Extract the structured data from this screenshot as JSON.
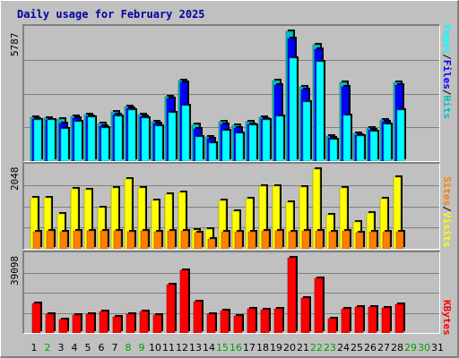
{
  "chart_data": {
    "type": "bar",
    "title": "Daily usage for February 2025",
    "categories": [
      "1",
      "2",
      "3",
      "4",
      "5",
      "6",
      "7",
      "8",
      "9",
      "10",
      "11",
      "12",
      "13",
      "14",
      "15",
      "16",
      "17",
      "18",
      "19",
      "20",
      "21",
      "22",
      "23",
      "24",
      "25",
      "26",
      "27",
      "28",
      "29",
      "30",
      "31"
    ],
    "weekend_days": [
      "2",
      "8",
      "9",
      "15",
      "16",
      "22",
      "23",
      "29",
      "30"
    ],
    "colors": {
      "hits": "#00c0c0",
      "files": "#0000ff",
      "pages": "#00ffff",
      "visits": "#ffff00",
      "sites": "#ff8000",
      "kbytes": "#ff0000",
      "weekend_label": "#00a000",
      "weekday_label": "#000000",
      "title": "#0000a0"
    },
    "panels": [
      {
        "name": "hits-files-pages",
        "scale_max_label": "5787",
        "ylim": [
          0,
          5787
        ],
        "legend": [
          {
            "label": "Hits",
            "color": "#00c0c0"
          },
          {
            "label": "Files",
            "color": "#0000ff"
          },
          {
            "label": "Pages",
            "color": "#00ffff"
          }
        ],
        "series": [
          {
            "name": "Hits",
            "values": [
              1970,
              1920,
              1880,
              2010,
              2070,
              1680,
              2180,
              2440,
              2070,
              1740,
              2890,
              3610,
              1630,
              1080,
              1760,
              1580,
              1740,
              1970,
              3600,
              5787,
              3330,
              5180,
              1100,
              3520,
              1250,
              1460,
              1850,
              3500,
              0,
              0,
              0
            ]
          },
          {
            "name": "Files",
            "values": [
              1880,
              1820,
              1660,
              1930,
              1980,
              1540,
              2060,
              2340,
              1990,
              1660,
              2790,
              3510,
              1440,
              980,
              1640,
              1460,
              1630,
              1890,
              3400,
              5460,
              3190,
              5000,
              1020,
              3330,
              1140,
              1380,
              1770,
              3400,
              0,
              0,
              0
            ]
          },
          {
            "name": "Pages",
            "values": [
              1850,
              1820,
              1430,
              1760,
              1940,
              1480,
              2000,
              2280,
              1900,
              1540,
              2150,
              2480,
              1090,
              780,
              1350,
              1250,
              1580,
              1850,
              2000,
              4600,
              2630,
              4440,
              970,
              2020,
              1120,
              1310,
              1650,
              2280,
              0,
              0,
              0
            ]
          }
        ]
      },
      {
        "name": "visits-sites",
        "scale_max_label": "2048",
        "ylim": [
          0,
          2048
        ],
        "legend": [
          {
            "label": "Visits",
            "color": "#ffff00"
          },
          {
            "label": "Sites",
            "color": "#ff8000"
          }
        ],
        "series": [
          {
            "name": "Visits",
            "values": [
              1310,
              1310,
              900,
              1550,
              1520,
              1060,
              1570,
              1790,
              1570,
              1250,
              1410,
              1440,
              490,
              510,
              1250,
              970,
              1290,
              1600,
              1610,
              1200,
              1580,
              2048,
              880,
              1570,
              700,
              930,
              1290,
              1850,
              0,
              0,
              0
            ]
          },
          {
            "name": "Sites",
            "values": [
              440,
              450,
              440,
              450,
              460,
              450,
              460,
              440,
              470,
              430,
              460,
              470,
              420,
              250,
              430,
              440,
              430,
              450,
              450,
              440,
              450,
              460,
              430,
              460,
              420,
              430,
              440,
              440,
              0,
              0,
              0
            ]
          }
        ]
      },
      {
        "name": "kbytes",
        "scale_max_label": "39098",
        "ylim": [
          0,
          39098
        ],
        "legend": [
          {
            "label": "KBytes",
            "color": "#ff0000"
          }
        ],
        "series": [
          {
            "name": "KBytes",
            "values": [
              15500,
              9600,
              6800,
              9500,
              10000,
              11000,
              8600,
              10000,
              11400,
              9200,
              25000,
              32400,
              16100,
              9800,
              11800,
              8900,
              12700,
              11900,
              12700,
              39098,
              18000,
              28400,
              7400,
              12400,
              13500,
              13600,
              12800,
              15000,
              0,
              0,
              0
            ]
          }
        ]
      }
    ]
  }
}
